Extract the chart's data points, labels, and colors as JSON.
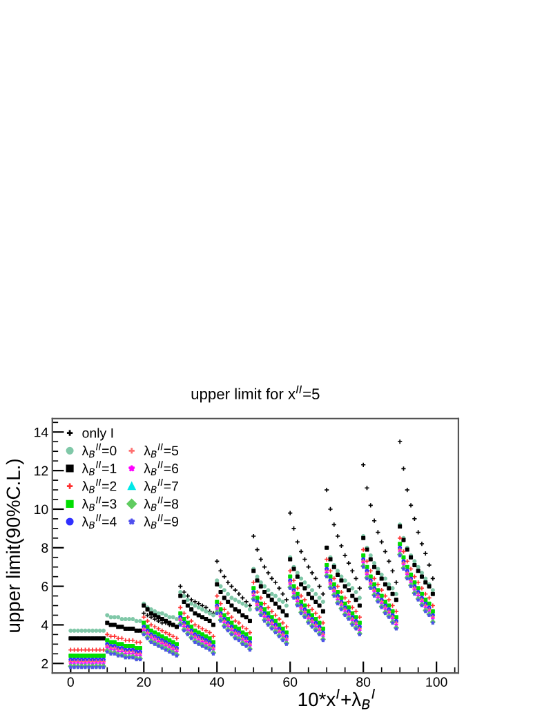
{
  "chart_data": {
    "type": "scatter",
    "title": "upper limit for x$^{II}$=5",
    "xlabel": "10*x$^{I}$+λ$_{B}$$^{I}$",
    "ylabel": "upper limit(90%C.L.)",
    "x": [
      0,
      1,
      2,
      3,
      4,
      5,
      6,
      7,
      8,
      9,
      10,
      11,
      12,
      13,
      14,
      15,
      16,
      17,
      18,
      19,
      20,
      21,
      22,
      23,
      24,
      25,
      26,
      27,
      28,
      29,
      30,
      31,
      32,
      33,
      34,
      35,
      36,
      37,
      38,
      39,
      40,
      41,
      42,
      43,
      44,
      45,
      46,
      47,
      48,
      49,
      50,
      51,
      52,
      53,
      54,
      55,
      56,
      57,
      58,
      59,
      60,
      61,
      62,
      63,
      64,
      65,
      66,
      67,
      68,
      69,
      70,
      71,
      72,
      73,
      74,
      75,
      76,
      77,
      78,
      79,
      80,
      81,
      82,
      83,
      84,
      85,
      86,
      87,
      88,
      89,
      90,
      91,
      92,
      93,
      94,
      95,
      96,
      97,
      98,
      99
    ],
    "xlim": [
      -5,
      106
    ],
    "xticks": [
      0,
      20,
      40,
      60,
      80,
      100
    ],
    "ylim": [
      1.5,
      14.7
    ],
    "yticks": [
      2,
      4,
      6,
      8,
      10,
      12,
      14
    ],
    "grid": false,
    "legend": "top left",
    "series": [
      {
        "name": "only I",
        "color": "#000000",
        "marker": "cross",
        "values": [
          null,
          null,
          null,
          null,
          null,
          null,
          null,
          null,
          null,
          null,
          null,
          null,
          null,
          null,
          null,
          null,
          null,
          null,
          null,
          null,
          4.6,
          4.5,
          4.4,
          4.3,
          4.2,
          4.1,
          4.1,
          4.0,
          4.0,
          3.9,
          6.0,
          5.7,
          5.5,
          5.3,
          5.2,
          5.1,
          5.0,
          4.9,
          4.7,
          4.6,
          7.3,
          6.8,
          6.5,
          6.2,
          6.0,
          5.8,
          5.6,
          5.4,
          5.2,
          5.0,
          8.6,
          7.9,
          7.4,
          7.0,
          6.7,
          6.4,
          6.2,
          5.9,
          5.6,
          5.3,
          9.8,
          9.0,
          8.3,
          7.8,
          7.4,
          7.0,
          6.7,
          6.4,
          6.0,
          5.6,
          11.0,
          10.0,
          9.2,
          8.6,
          8.1,
          7.6,
          7.2,
          6.8,
          6.4,
          5.9,
          12.3,
          11.1,
          10.2,
          9.4,
          8.8,
          8.3,
          7.8,
          7.3,
          6.8,
          6.2,
          13.5,
          12.1,
          11.0,
          10.2,
          9.5,
          8.8,
          8.2,
          7.7,
          7.1,
          6.4
        ]
      },
      {
        "name": "λ$_{B}$$^{II}$=0",
        "color": "#80c8a8",
        "marker": "circle",
        "values": [
          3.7,
          3.7,
          3.7,
          3.7,
          3.7,
          3.7,
          3.7,
          3.7,
          3.7,
          3.7,
          4.5,
          4.4,
          4.4,
          4.4,
          4.3,
          4.3,
          4.3,
          4.3,
          4.2,
          4.2,
          5.1,
          4.9,
          4.8,
          4.7,
          4.6,
          4.6,
          4.5,
          4.4,
          4.4,
          4.3,
          5.7,
          5.5,
          5.3,
          5.1,
          5.0,
          4.9,
          4.8,
          4.7,
          4.6,
          4.5,
          6.3,
          6.0,
          5.8,
          5.6,
          5.4,
          5.3,
          5.2,
          5.1,
          5.0,
          4.8,
          6.9,
          6.5,
          6.2,
          6.0,
          5.8,
          5.6,
          5.5,
          5.3,
          5.2,
          5.0,
          7.5,
          7.0,
          6.7,
          6.4,
          6.2,
          6.0,
          5.8,
          5.6,
          5.4,
          5.2,
          8.0,
          7.5,
          7.1,
          6.8,
          6.5,
          6.3,
          6.1,
          5.9,
          5.7,
          5.4,
          8.6,
          8.0,
          7.6,
          7.2,
          6.9,
          6.6,
          6.4,
          6.1,
          5.9,
          5.6,
          9.2,
          8.5,
          8.0,
          7.6,
          7.3,
          7.0,
          6.7,
          6.4,
          6.1,
          5.8
        ]
      },
      {
        "name": "λ$_{B}$$^{II}$=1",
        "color": "#000000",
        "marker": "square",
        "values": [
          3.3,
          3.3,
          3.3,
          3.3,
          3.3,
          3.3,
          3.3,
          3.3,
          3.3,
          3.3,
          4.1,
          4.0,
          4.0,
          3.9,
          3.9,
          3.8,
          3.8,
          3.8,
          3.7,
          3.7,
          5.0,
          4.8,
          4.6,
          4.5,
          4.4,
          4.3,
          4.2,
          4.1,
          4.0,
          3.9,
          5.5,
          5.2,
          5.0,
          4.8,
          4.6,
          4.5,
          4.4,
          4.3,
          4.2,
          4.0,
          6.1,
          5.7,
          5.4,
          5.2,
          5.0,
          4.8,
          4.7,
          4.5,
          4.4,
          4.2,
          6.8,
          6.3,
          6.0,
          5.7,
          5.5,
          5.3,
          5.1,
          4.9,
          4.7,
          4.5,
          7.4,
          6.9,
          6.5,
          6.1,
          5.9,
          5.6,
          5.4,
          5.2,
          5.0,
          4.7,
          8.0,
          7.4,
          7.0,
          6.6,
          6.3,
          6.0,
          5.8,
          5.5,
          5.3,
          5.0,
          8.5,
          7.9,
          7.4,
          7.0,
          6.7,
          6.4,
          6.1,
          5.9,
          5.6,
          5.3,
          9.1,
          8.4,
          7.9,
          7.5,
          7.1,
          6.8,
          6.5,
          6.2,
          6.0,
          5.6
        ]
      },
      {
        "name": "λ$_{B}$$^{II}$=2",
        "color": "#ff3030",
        "marker": "cross",
        "values": [
          2.7,
          2.7,
          2.7,
          2.7,
          2.7,
          2.7,
          2.7,
          2.7,
          2.7,
          2.7,
          3.5,
          3.4,
          3.4,
          3.3,
          3.3,
          3.2,
          3.2,
          3.2,
          3.1,
          3.1,
          4.4,
          4.2,
          4.0,
          3.9,
          3.8,
          3.7,
          3.6,
          3.5,
          3.4,
          3.3,
          4.9,
          4.6,
          4.4,
          4.2,
          4.0,
          3.9,
          3.8,
          3.7,
          3.6,
          3.4,
          5.5,
          5.1,
          4.8,
          4.6,
          4.4,
          4.2,
          4.1,
          3.9,
          3.8,
          3.6,
          6.2,
          5.7,
          5.4,
          5.1,
          4.9,
          4.7,
          4.5,
          4.3,
          4.1,
          3.9,
          6.8,
          6.3,
          5.9,
          5.5,
          5.3,
          5.0,
          4.8,
          4.6,
          4.4,
          4.1,
          7.4,
          6.8,
          6.4,
          6.0,
          5.7,
          5.4,
          5.2,
          4.9,
          4.7,
          4.4,
          7.9,
          7.3,
          6.8,
          6.4,
          6.1,
          5.8,
          5.5,
          5.3,
          5.0,
          4.7,
          8.5,
          7.8,
          7.3,
          6.9,
          6.5,
          6.2,
          5.9,
          5.6,
          5.4,
          5.0
        ]
      },
      {
        "name": "λ$_{B}$$^{II}$=3",
        "color": "#00dd00",
        "marker": "square",
        "values": [
          2.4,
          2.4,
          2.4,
          2.4,
          2.4,
          2.4,
          2.4,
          2.4,
          2.4,
          2.4,
          3.2,
          3.1,
          3.1,
          3.0,
          3.0,
          2.9,
          2.9,
          2.9,
          2.8,
          2.8,
          4.1,
          3.9,
          3.7,
          3.6,
          3.5,
          3.4,
          3.3,
          3.2,
          3.1,
          3.0,
          4.6,
          4.3,
          4.1,
          3.9,
          3.7,
          3.6,
          3.5,
          3.4,
          3.3,
          3.1,
          5.2,
          4.8,
          4.5,
          4.3,
          4.1,
          3.9,
          3.8,
          3.6,
          3.5,
          3.3,
          5.9,
          5.4,
          5.1,
          4.8,
          4.6,
          4.4,
          4.2,
          4.0,
          3.8,
          3.6,
          6.5,
          6.0,
          5.6,
          5.2,
          5.0,
          4.7,
          4.5,
          4.3,
          4.1,
          3.8,
          7.1,
          6.5,
          6.1,
          5.7,
          5.4,
          5.1,
          4.9,
          4.6,
          4.4,
          4.1,
          7.6,
          7.0,
          6.5,
          6.1,
          5.8,
          5.5,
          5.2,
          5.0,
          4.7,
          4.4,
          8.2,
          7.5,
          7.0,
          6.6,
          6.2,
          5.9,
          5.6,
          5.3,
          5.1,
          4.7
        ]
      },
      {
        "name": "λ$_{B}$$^{II}$=4",
        "color": "#3030ff",
        "marker": "circle",
        "values": [
          2.2,
          2.2,
          2.2,
          2.2,
          2.2,
          2.2,
          2.2,
          2.2,
          2.2,
          2.2,
          3.0,
          2.9,
          2.9,
          2.8,
          2.8,
          2.7,
          2.7,
          2.7,
          2.6,
          2.6,
          3.9,
          3.7,
          3.5,
          3.4,
          3.3,
          3.2,
          3.1,
          3.0,
          2.9,
          2.8,
          4.4,
          4.1,
          3.9,
          3.7,
          3.5,
          3.4,
          3.3,
          3.2,
          3.1,
          2.9,
          5.0,
          4.6,
          4.3,
          4.1,
          3.9,
          3.7,
          3.6,
          3.4,
          3.3,
          3.1,
          5.7,
          5.2,
          4.9,
          4.6,
          4.4,
          4.2,
          4.0,
          3.8,
          3.6,
          3.4,
          6.3,
          5.8,
          5.4,
          5.0,
          4.8,
          4.5,
          4.3,
          4.1,
          3.9,
          3.6,
          6.9,
          6.3,
          5.9,
          5.5,
          5.2,
          4.9,
          4.7,
          4.4,
          4.2,
          3.9,
          7.4,
          6.8,
          6.3,
          5.9,
          5.6,
          5.3,
          5.0,
          4.8,
          4.5,
          4.2,
          8.0,
          7.3,
          6.8,
          6.4,
          6.0,
          5.7,
          5.4,
          5.1,
          4.9,
          4.5
        ]
      },
      {
        "name": "λ$_{B}$$^{II}$=5",
        "color": "#ff7070",
        "marker": "cross",
        "values": [
          2.1,
          2.1,
          2.1,
          2.1,
          2.1,
          2.1,
          2.1,
          2.1,
          2.1,
          2.1,
          2.9,
          2.8,
          2.8,
          2.7,
          2.7,
          2.6,
          2.6,
          2.6,
          2.5,
          2.5,
          3.8,
          3.6,
          3.4,
          3.3,
          3.2,
          3.1,
          3.0,
          2.9,
          2.8,
          2.7,
          4.3,
          4.0,
          3.8,
          3.6,
          3.4,
          3.3,
          3.2,
          3.1,
          3.0,
          2.8,
          4.9,
          4.5,
          4.2,
          4.0,
          3.8,
          3.6,
          3.5,
          3.3,
          3.2,
          3.0,
          5.6,
          5.1,
          4.8,
          4.5,
          4.3,
          4.1,
          3.9,
          3.7,
          3.5,
          3.3,
          6.2,
          5.7,
          5.3,
          4.9,
          4.7,
          4.4,
          4.2,
          4.0,
          3.8,
          3.5,
          6.8,
          6.2,
          5.8,
          5.4,
          5.1,
          4.8,
          4.6,
          4.3,
          4.1,
          3.8,
          7.3,
          6.7,
          6.2,
          5.8,
          5.5,
          5.2,
          4.9,
          4.7,
          4.4,
          4.1,
          7.9,
          7.2,
          6.7,
          6.3,
          5.9,
          5.6,
          5.3,
          5.0,
          4.8,
          4.4
        ]
      },
      {
        "name": "λ$_{B}$$^{II}$=6",
        "color": "#ff00ff",
        "marker": "star",
        "values": [
          2.0,
          2.0,
          2.0,
          2.0,
          2.0,
          2.0,
          2.0,
          2.0,
          2.0,
          2.0,
          2.8,
          2.7,
          2.7,
          2.6,
          2.6,
          2.5,
          2.5,
          2.5,
          2.4,
          2.4,
          3.7,
          3.5,
          3.3,
          3.2,
          3.1,
          3.0,
          2.9,
          2.8,
          2.7,
          2.6,
          4.2,
          3.9,
          3.7,
          3.5,
          3.3,
          3.2,
          3.1,
          3.0,
          2.9,
          2.7,
          4.8,
          4.4,
          4.1,
          3.9,
          3.7,
          3.5,
          3.4,
          3.2,
          3.1,
          2.9,
          5.5,
          5.0,
          4.7,
          4.4,
          4.2,
          4.0,
          3.8,
          3.6,
          3.4,
          3.2,
          6.1,
          5.6,
          5.2,
          4.8,
          4.6,
          4.3,
          4.1,
          3.9,
          3.7,
          3.4,
          6.7,
          6.1,
          5.7,
          5.3,
          5.0,
          4.7,
          4.5,
          4.2,
          4.0,
          3.7,
          7.2,
          6.6,
          6.1,
          5.7,
          5.4,
          5.1,
          4.8,
          4.6,
          4.3,
          4.0,
          7.8,
          7.1,
          6.6,
          6.2,
          5.8,
          5.5,
          5.2,
          4.9,
          4.7,
          4.3
        ]
      },
      {
        "name": "λ$_{B}$$^{II}$=7",
        "color": "#00e8e8",
        "marker": "triangle",
        "values": [
          1.9,
          1.9,
          1.9,
          1.9,
          1.9,
          1.9,
          1.9,
          1.9,
          1.9,
          1.9,
          2.7,
          2.6,
          2.6,
          2.5,
          2.5,
          2.4,
          2.4,
          2.4,
          2.3,
          2.3,
          3.6,
          3.4,
          3.2,
          3.1,
          3.0,
          2.9,
          2.8,
          2.7,
          2.6,
          2.5,
          4.1,
          3.8,
          3.6,
          3.4,
          3.2,
          3.1,
          3.0,
          2.9,
          2.8,
          2.6,
          4.7,
          4.3,
          4.0,
          3.8,
          3.6,
          3.4,
          3.3,
          3.1,
          3.0,
          2.8,
          5.4,
          4.9,
          4.6,
          4.3,
          4.1,
          3.9,
          3.7,
          3.5,
          3.3,
          3.1,
          6.0,
          5.5,
          5.1,
          4.7,
          4.5,
          4.2,
          4.0,
          3.8,
          3.6,
          3.3,
          6.6,
          6.0,
          5.6,
          5.2,
          4.9,
          4.6,
          4.4,
          4.1,
          3.9,
          3.6,
          7.1,
          6.5,
          6.0,
          5.6,
          5.3,
          5.0,
          4.7,
          4.5,
          4.2,
          3.9,
          7.7,
          7.0,
          6.5,
          6.1,
          5.7,
          5.4,
          5.1,
          4.8,
          4.6,
          4.2
        ]
      },
      {
        "name": "λ$_{B}$$^{II}$=8",
        "color": "#60cc60",
        "marker": "diamond",
        "values": [
          1.85,
          1.85,
          1.85,
          1.85,
          1.85,
          1.85,
          1.85,
          1.85,
          1.85,
          1.85,
          2.65,
          2.55,
          2.55,
          2.45,
          2.45,
          2.35,
          2.35,
          2.35,
          2.25,
          2.25,
          3.55,
          3.35,
          3.15,
          3.05,
          2.95,
          2.85,
          2.75,
          2.65,
          2.55,
          2.45,
          4.05,
          3.75,
          3.55,
          3.35,
          3.15,
          3.05,
          2.95,
          2.85,
          2.75,
          2.55,
          4.65,
          4.25,
          3.95,
          3.75,
          3.55,
          3.35,
          3.25,
          3.05,
          2.95,
          2.75,
          5.35,
          4.85,
          4.55,
          4.25,
          4.05,
          3.85,
          3.65,
          3.45,
          3.25,
          3.05,
          5.95,
          5.45,
          5.05,
          4.65,
          4.45,
          4.15,
          3.95,
          3.75,
          3.55,
          3.25,
          6.55,
          5.95,
          5.55,
          5.15,
          4.85,
          4.55,
          4.35,
          4.05,
          3.85,
          3.55,
          7.05,
          6.45,
          5.95,
          5.55,
          5.25,
          4.95,
          4.65,
          4.45,
          4.15,
          3.85,
          7.65,
          6.95,
          6.45,
          6.05,
          5.65,
          5.35,
          5.05,
          4.75,
          4.55,
          4.15
        ]
      },
      {
        "name": "λ$_{B}$$^{II}$=9",
        "color": "#5050ee",
        "marker": "star",
        "values": [
          1.8,
          1.8,
          1.8,
          1.8,
          1.8,
          1.8,
          1.8,
          1.8,
          1.8,
          1.8,
          2.6,
          2.5,
          2.5,
          2.4,
          2.4,
          2.3,
          2.3,
          2.3,
          2.2,
          2.2,
          3.5,
          3.3,
          3.1,
          3.0,
          2.9,
          2.8,
          2.7,
          2.6,
          2.5,
          2.4,
          4.0,
          3.7,
          3.5,
          3.3,
          3.1,
          3.0,
          2.9,
          2.8,
          2.7,
          2.5,
          4.6,
          4.2,
          3.9,
          3.7,
          3.5,
          3.3,
          3.2,
          3.0,
          2.9,
          2.7,
          5.3,
          4.8,
          4.5,
          4.2,
          4.0,
          3.8,
          3.6,
          3.4,
          3.2,
          3.0,
          5.9,
          5.4,
          5.0,
          4.6,
          4.4,
          4.1,
          3.9,
          3.7,
          3.5,
          3.2,
          6.5,
          5.9,
          5.5,
          5.1,
          4.8,
          4.5,
          4.3,
          4.0,
          3.8,
          3.5,
          7.0,
          6.4,
          5.9,
          5.5,
          5.2,
          4.9,
          4.6,
          4.4,
          4.1,
          3.8,
          7.6,
          6.9,
          6.4,
          6.0,
          5.6,
          5.3,
          5.0,
          4.7,
          4.5,
          4.1
        ]
      }
    ]
  }
}
